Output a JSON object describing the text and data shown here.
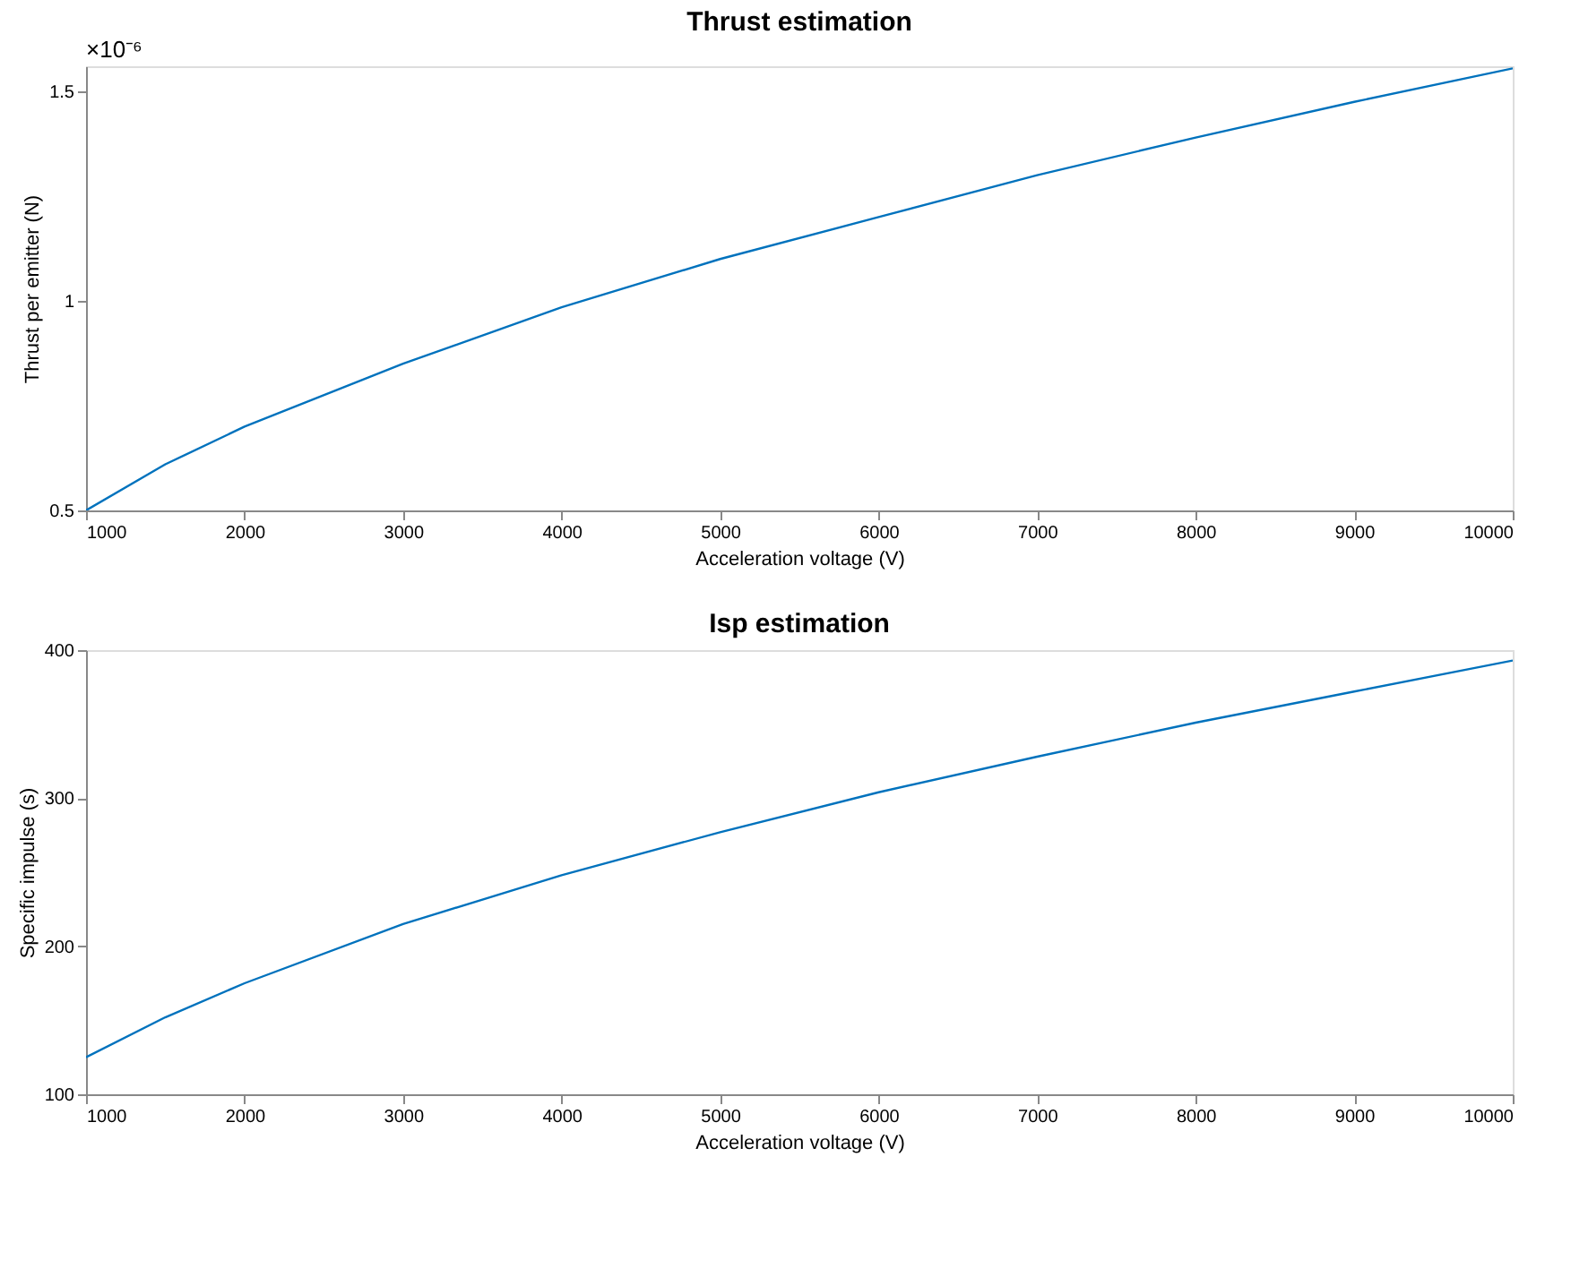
{
  "chart_data": [
    {
      "type": "line",
      "title": "Thrust estimation",
      "xlabel": "Acceleration voltage (V)",
      "ylabel": "Thrust per emitter (N)",
      "annotations": [
        "×10⁻⁶"
      ],
      "x": [
        1000,
        1500,
        2000,
        3000,
        4000,
        5000,
        6000,
        7000,
        8000,
        9000,
        10000
      ],
      "series": [
        {
          "color": "#0072bd",
          "values": [
            0.5,
            0.61,
            0.7,
            0.85,
            0.985,
            1.1,
            1.2,
            1.3,
            1.39,
            1.475,
            1.555
          ]
        }
      ],
      "xlim": [
        1000,
        10000
      ],
      "xticks": [
        1000,
        2000,
        3000,
        4000,
        5000,
        6000,
        7000,
        8000,
        9000,
        10000
      ],
      "ylim": [
        0.5,
        1.56
      ],
      "yticks": [
        0.5,
        1,
        1.5
      ],
      "grid": false,
      "marker": "none",
      "line_style": "solid"
    },
    {
      "type": "line",
      "title": "Isp estimation",
      "xlabel": "Acceleration voltage (V)",
      "ylabel": "Specific impulse (s)",
      "x": [
        1000,
        1500,
        2000,
        3000,
        4000,
        5000,
        6000,
        7000,
        8000,
        9000,
        10000
      ],
      "series": [
        {
          "color": "#0072bd",
          "values": [
            125,
            152,
            175,
            215,
            248,
            277,
            304,
            328,
            351,
            372,
            393
          ]
        }
      ],
      "xlim": [
        1000,
        10000
      ],
      "xticks": [
        1000,
        2000,
        3000,
        4000,
        5000,
        6000,
        7000,
        8000,
        9000,
        10000
      ],
      "ylim": [
        100,
        400
      ],
      "yticks": [
        100,
        200,
        300,
        400
      ],
      "grid": false,
      "marker": "none",
      "line_style": "solid"
    }
  ]
}
